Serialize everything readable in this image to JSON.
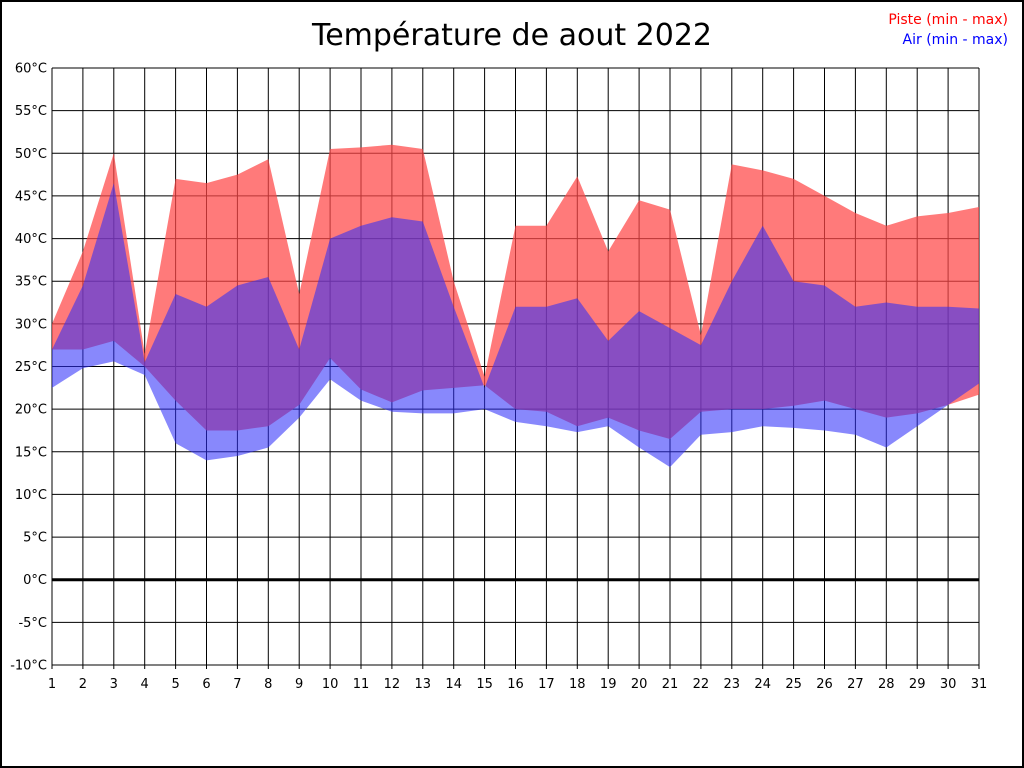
{
  "title": "Température de aout 2022",
  "legend": {
    "items": [
      {
        "label": "Piste (min - max)",
        "color": "#ff0000"
      },
      {
        "label": "Air (min - max)",
        "color": "#0000ff"
      }
    ]
  },
  "chart_data": {
    "type": "area",
    "title": "Température de aout 2022",
    "xlabel": "",
    "ylabel": "",
    "x": [
      1,
      2,
      3,
      4,
      5,
      6,
      7,
      8,
      9,
      10,
      11,
      12,
      13,
      14,
      15,
      16,
      17,
      18,
      19,
      20,
      21,
      22,
      23,
      24,
      25,
      26,
      27,
      28,
      29,
      30,
      31
    ],
    "xtick_labels": [
      "1",
      "2",
      "3",
      "4",
      "5",
      "6",
      "7",
      "8",
      "9",
      "10",
      "11",
      "12",
      "13",
      "14",
      "15",
      "16",
      "17",
      "18",
      "19",
      "20",
      "21",
      "22",
      "23",
      "24",
      "25",
      "26",
      "27",
      "28",
      "29",
      "30",
      "31"
    ],
    "ylim": [
      -10,
      60
    ],
    "ytick_step": 5,
    "ytick_labels": [
      "60°C",
      "55°C",
      "50°C",
      "45°C",
      "40°C",
      "35°C",
      "30°C",
      "25°C",
      "20°C",
      "15°C",
      "10°C",
      "5°C",
      "0°C",
      "-5°C",
      "-10°C"
    ],
    "grid": true,
    "zero_line": true,
    "legend_position": "top-right",
    "series": [
      {
        "name": "Piste (min - max)",
        "fill": "rgba(255,70,70,0.72)",
        "min": [
          27,
          27,
          28,
          25,
          21,
          17.5,
          17.5,
          18,
          20.5,
          26,
          22.3,
          20.8,
          22.2,
          22.5,
          22.8,
          20,
          19.7,
          18,
          19,
          17.5,
          16.5,
          19.7,
          20,
          20,
          20.4,
          21,
          20,
          19,
          19.5,
          20.5,
          21.7
        ],
        "max": [
          30,
          38.5,
          50,
          26.5,
          47,
          46.5,
          47.5,
          49.3,
          33.5,
          50.5,
          50.7,
          51,
          50.5,
          35,
          23.8,
          41.5,
          41.5,
          47.3,
          38.5,
          44.5,
          43.4,
          28.7,
          48.7,
          48,
          47,
          45,
          43,
          41.5,
          42.6,
          43,
          43.7
        ]
      },
      {
        "name": "Air (min - max)",
        "fill": "rgba(45,45,250,0.57)",
        "min": [
          22.5,
          24.8,
          25.6,
          24,
          16,
          14,
          14.5,
          15.5,
          19,
          23.5,
          21,
          19.7,
          19.5,
          19.5,
          20,
          18.5,
          18,
          17.3,
          18,
          15.5,
          13.2,
          17,
          17.3,
          18,
          17.8,
          17.5,
          17,
          15.5,
          18,
          20.5,
          23
        ],
        "max": [
          27,
          34.5,
          46.5,
          25.5,
          33.5,
          32,
          34.5,
          35.5,
          27,
          40,
          41.5,
          42.5,
          42,
          32,
          22.5,
          32,
          32,
          33,
          28,
          31.5,
          29.5,
          27.5,
          35,
          41.5,
          35,
          34.5,
          32,
          32.5,
          32,
          32,
          31.8
        ]
      }
    ]
  }
}
